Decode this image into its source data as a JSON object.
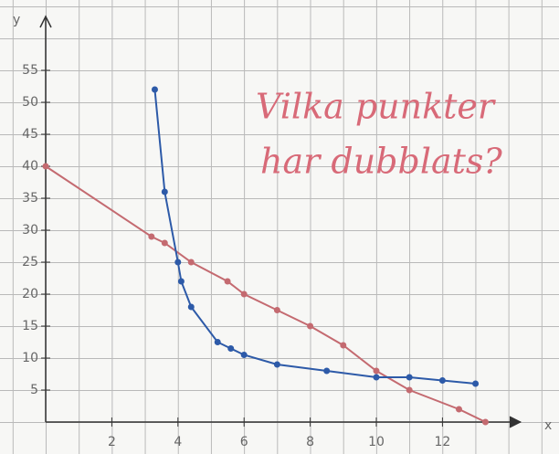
{
  "chart_data": {
    "type": "line",
    "annotation": [
      "Vilka punkter",
      "har dubblats?"
    ],
    "y_label": "y",
    "x_label": "x",
    "xlim": [
      0,
      15
    ],
    "ylim": [
      0,
      60
    ],
    "xticks": [
      2,
      4,
      6,
      8,
      10,
      12
    ],
    "yticks": [
      5,
      10,
      15,
      20,
      25,
      30,
      35,
      40,
      45,
      50,
      55
    ],
    "series": [
      {
        "color": "#c46a70",
        "x": [
          0,
          3.2,
          3.6,
          4.4,
          5.5,
          6,
          7,
          8,
          9,
          10,
          11,
          12.5,
          13.3
        ],
        "values": [
          40,
          29,
          28,
          25,
          22,
          20,
          17.5,
          15,
          12,
          8,
          5,
          2,
          0
        ]
      },
      {
        "color": "#2d5aa8",
        "x": [
          3.3,
          3.6,
          4,
          4.1,
          4.4,
          5.2,
          5.6,
          6,
          7,
          8.5,
          10,
          11,
          12,
          13
        ],
        "values": [
          52,
          36,
          25,
          22,
          18,
          12.5,
          11.5,
          10.5,
          9,
          8,
          7,
          7,
          6.5,
          6
        ]
      }
    ]
  }
}
